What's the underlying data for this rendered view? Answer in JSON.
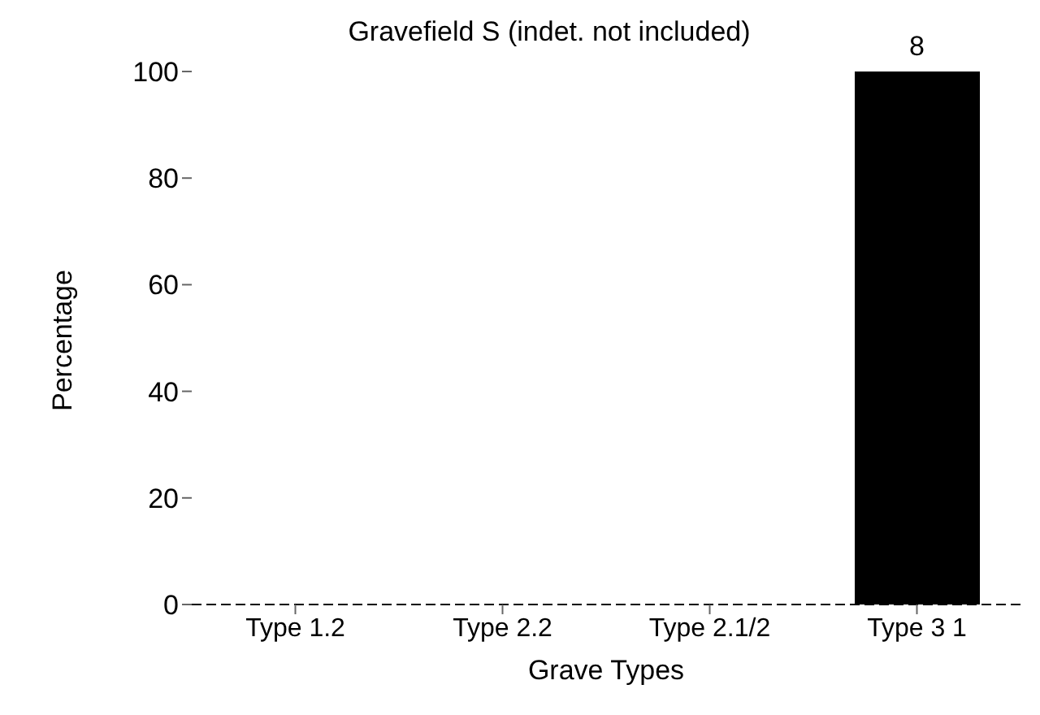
{
  "chart_data": {
    "type": "bar",
    "title": "Gravefield S (indet. not included)",
    "xlabel": "Grave Types",
    "ylabel": "Percentage",
    "categories": [
      "Type 1.2",
      "Type 2.2",
      "Type 2.1/2",
      "Type 3 1"
    ],
    "values": [
      0,
      0,
      0,
      100
    ],
    "annotations": [
      {
        "text": "8",
        "x": "Type 3 1",
        "y": 100
      }
    ],
    "color": "#000000",
    "ylim": [
      0,
      100
    ],
    "yticks": [
      0,
      20,
      40,
      60,
      80,
      100
    ],
    "grid": false
  }
}
